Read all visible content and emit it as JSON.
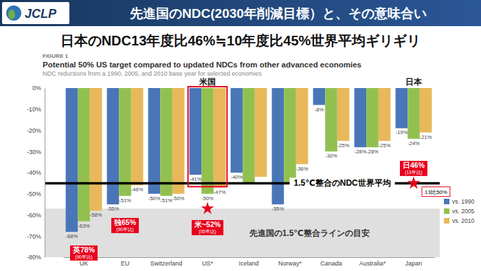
{
  "slide": {
    "logo": "JCLP",
    "title": "先進国のNDC(2030年削減目標）と、その意味合い",
    "headline": "日本のNDC13年度比46%≒10年度比45%世界平均ギリギリ"
  },
  "chart_data": {
    "type": "bar",
    "figure_label": "FIGURE 1",
    "title": "Potential 50% US target compared to updated NDCs from other advanced economies",
    "subtitle": "NDC reductions from a 1990, 2005, and 2010 base year for selected economies",
    "categories": [
      "UK",
      "EU",
      "Switzerland",
      "US*",
      "Iceland",
      "Norway*",
      "Canada",
      "Australia*",
      "Japan"
    ],
    "series": [
      {
        "name": "vs. 1990",
        "color": "#4a76b8",
        "values": [
          -68,
          -55,
          -50,
          -41,
          -40,
          -55,
          -8,
          -28,
          -19
        ],
        "value_labels": [
          "-68%",
          "-55%",
          "-50%",
          "-41%",
          "-40%",
          "-55%",
          "-8%",
          "-28%",
          "-19%"
        ]
      },
      {
        "name": "vs. 2005",
        "color": "#92c050",
        "values": [
          -63,
          -51,
          -51,
          -50,
          -45,
          -45,
          -30,
          -28,
          -24
        ],
        "value_labels": [
          "-63%",
          "-51%",
          "-51%",
          "-50%",
          null,
          null,
          "-30%",
          "-28%",
          "-24%"
        ]
      },
      {
        "name": "vs. 2010",
        "color": "#e8b85a",
        "values": [
          -58,
          -46,
          -50,
          -47,
          -42,
          -36,
          -25,
          -25,
          -21
        ],
        "value_labels": [
          "-58%",
          "-46%",
          "-50%",
          "-47%",
          null,
          "-36%",
          "-25%",
          "-25%",
          "-21%"
        ]
      }
    ],
    "ylim": [
      -80,
      0
    ],
    "yticks": [
      {
        "value": -80,
        "label": "-80%"
      },
      {
        "value": -70,
        "label": "-70%"
      },
      {
        "value": -60,
        "label": "-60%"
      },
      {
        "value": -50,
        "label": "-50%"
      },
      {
        "value": -40,
        "label": "-40%"
      },
      {
        "value": -30,
        "label": "-30%"
      },
      {
        "value": -20,
        "label": "-20%"
      },
      {
        "value": -10,
        "label": "-10%"
      },
      {
        "value": 0,
        "label": "0%"
      }
    ],
    "grid": false,
    "legend": "right",
    "data_labels": true,
    "reference_lines": [
      {
        "y": -45,
        "text": "1.5℃整合のNDC世界平均"
      }
    ],
    "bands": [
      {
        "y0": -57,
        "y1": -80,
        "text": "先進国の1.5℃整合ラインの目安"
      }
    ],
    "highlights": [
      {
        "category": "US*",
        "text": "米国"
      }
    ],
    "category_notes": [
      {
        "category": "Japan",
        "text": "日本"
      }
    ],
    "markers": [
      {
        "category": "US*",
        "y": -57
      },
      {
        "category": "Japan",
        "y": -45
      }
    ],
    "badges": [
      {
        "category": "UK",
        "y": -78,
        "text": "英78%",
        "note": "(90年比)"
      },
      {
        "category": "EU",
        "y": -65,
        "text": "独65%",
        "note": "(90年比)"
      },
      {
        "category": "US*",
        "y": -66,
        "text": "米~52%",
        "note": "(05年比)"
      },
      {
        "category": "Japan",
        "y": -38,
        "text": "日46%",
        "note": "(13年比)"
      }
    ],
    "callouts": [
      {
        "category": "Japan",
        "y": -49,
        "text": "13比50%"
      }
    ]
  }
}
